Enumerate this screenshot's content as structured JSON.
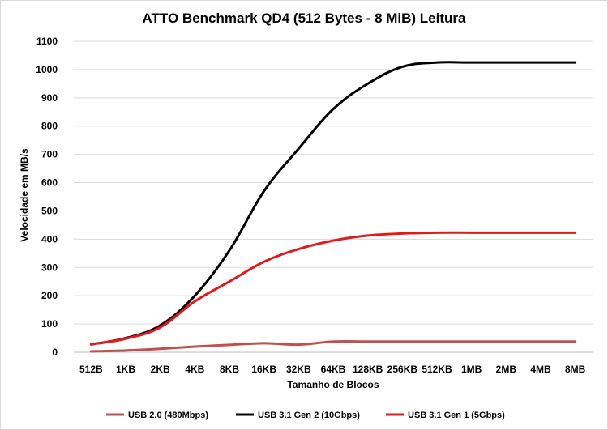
{
  "chart_data": {
    "type": "line",
    "title": "ATTO Benchmark QD4 (512 Bytes - 8 MiB) Leitura",
    "xlabel": "Tamanho de Blocos",
    "ylabel": "Velocidade em MB/s",
    "ylim": [
      0,
      1100
    ],
    "yticks": [
      0,
      100,
      200,
      300,
      400,
      500,
      600,
      700,
      800,
      900,
      1000,
      1100
    ],
    "grid": true,
    "legend_position": "bottom",
    "categories": [
      "512B",
      "1KB",
      "2KB",
      "4KB",
      "8KB",
      "16KB",
      "32KB",
      "64KB",
      "128KB",
      "256KB",
      "512KB",
      "1MB",
      "2MB",
      "4MB",
      "8MB"
    ],
    "series": [
      {
        "name": "USB 2.0 (480Mbps)",
        "color": "#c0504d",
        "values": [
          3,
          6,
          12,
          20,
          26,
          32,
          27,
          38,
          38,
          38,
          38,
          38,
          38,
          38,
          38
        ]
      },
      {
        "name": "USB 3.1 Gen 2 (10Gbps)",
        "color": "#000000",
        "values": [
          28,
          50,
          95,
          200,
          360,
          570,
          720,
          860,
          950,
          1010,
          1025,
          1025,
          1025,
          1025,
          1025
        ]
      },
      {
        "name": "USB 3.1 Gen 1 (5Gbps)",
        "color": "#e31a1c",
        "values": [
          28,
          48,
          88,
          180,
          250,
          320,
          365,
          395,
          413,
          420,
          423,
          423,
          423,
          423,
          423
        ]
      }
    ]
  }
}
